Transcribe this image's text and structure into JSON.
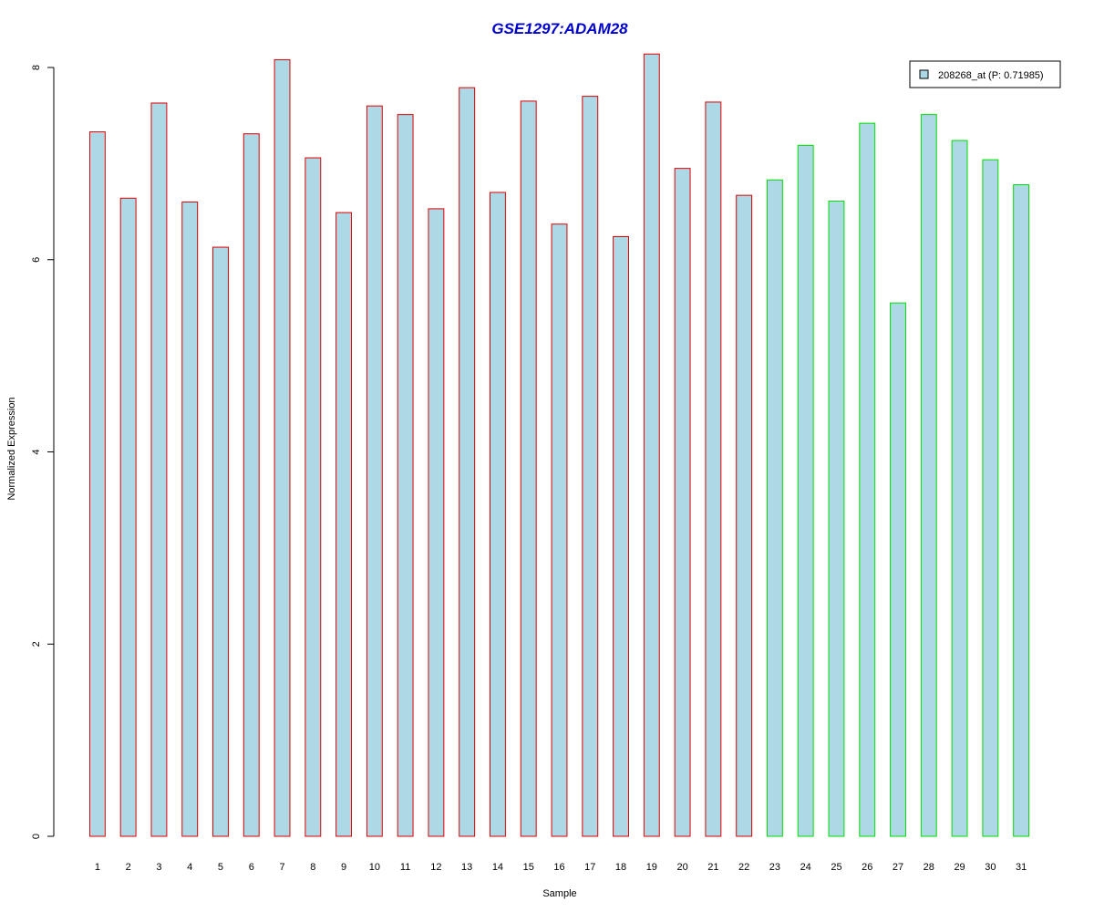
{
  "chart_data": {
    "type": "bar",
    "title": "GSE1297:ADAM28",
    "xlabel": "Sample",
    "ylabel": "Normalized Expression",
    "ylim": [
      0,
      8
    ],
    "yticks": [
      0,
      2,
      4,
      6,
      8
    ],
    "grid": false,
    "legend_position": "top-right",
    "categories": [
      "1",
      "2",
      "3",
      "4",
      "5",
      "6",
      "7",
      "8",
      "9",
      "10",
      "11",
      "12",
      "13",
      "14",
      "15",
      "16",
      "17",
      "18",
      "19",
      "20",
      "21",
      "22",
      "23",
      "24",
      "25",
      "26",
      "27",
      "28",
      "29",
      "30",
      "31"
    ],
    "series": [
      {
        "name": "208268_at (P: 0.71985)",
        "values": [
          7.33,
          6.64,
          7.63,
          6.6,
          6.13,
          7.31,
          8.08,
          7.06,
          6.49,
          7.6,
          7.51,
          6.53,
          7.79,
          6.7,
          7.65,
          6.37,
          7.7,
          6.24,
          8.14,
          6.95,
          7.64,
          6.67,
          6.83,
          7.19,
          6.61,
          7.42,
          5.55,
          7.51,
          7.24,
          7.04,
          6.78
        ]
      }
    ],
    "bar_groups": [
      {
        "from": 1,
        "to": 22,
        "border_color": "#dd0000"
      },
      {
        "from": 23,
        "to": 31,
        "border_color": "#00dd00"
      }
    ],
    "fill_color": "#add8e6",
    "title_color": "#0000cc"
  }
}
